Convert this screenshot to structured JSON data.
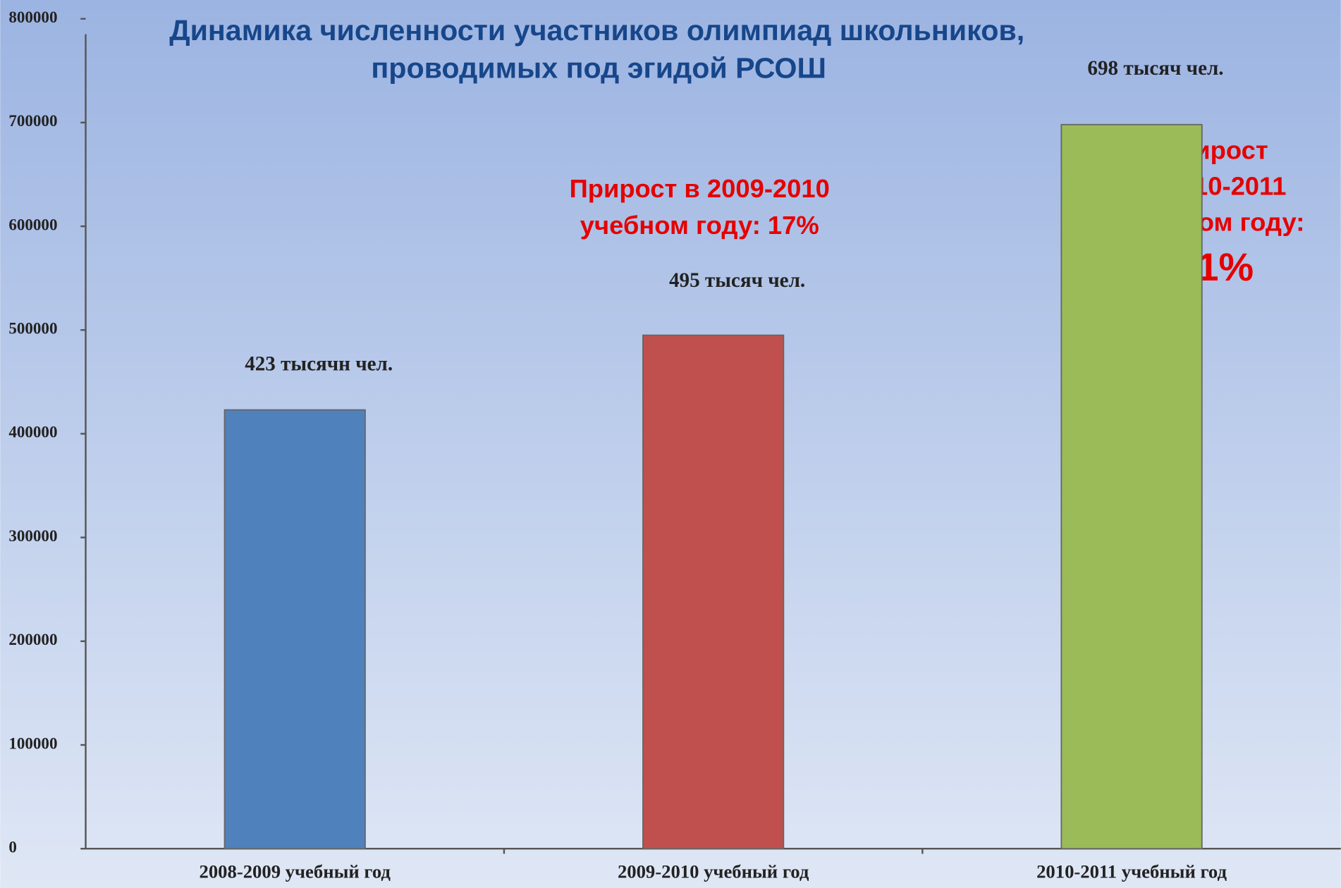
{
  "chart_data": {
    "type": "bar",
    "title": [
      "Динамика численности участников олимпиад школьников,",
      "проводимых под эгидой РСОШ"
    ],
    "categories": [
      "2008-2009 учебный год",
      "2009-2010 учебный год",
      "2010-2011 учебный год"
    ],
    "values": [
      423000,
      495000,
      698000
    ],
    "value_labels": [
      "423 тысячн чел.",
      "495 тысяч чел.",
      "698 тысяч чел."
    ],
    "colors": [
      "#4f81bd",
      "#c0504d",
      "#9bbb59"
    ],
    "ylim": [
      0,
      800000
    ],
    "yticks": [
      0,
      100000,
      200000,
      300000,
      400000,
      500000,
      600000,
      700000,
      800000
    ],
    "annotations": [
      {
        "lines": [
          "Прирост в 2009-2010",
          "учебном году: 17%"
        ]
      },
      {
        "lines": [
          "Прирост",
          "в 2010-2011",
          "учебном году:",
          "41%"
        ]
      }
    ]
  }
}
